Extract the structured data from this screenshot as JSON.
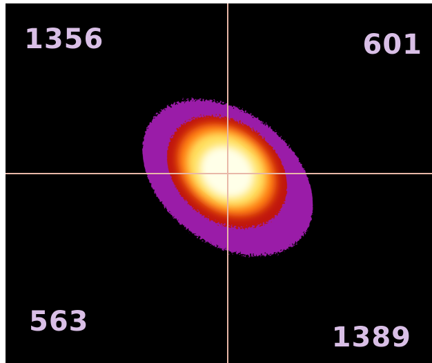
{
  "quadrants": {
    "top_left": 1356,
    "top_right": 601,
    "bottom_left": 563,
    "bottom_right": 1389
  }
}
